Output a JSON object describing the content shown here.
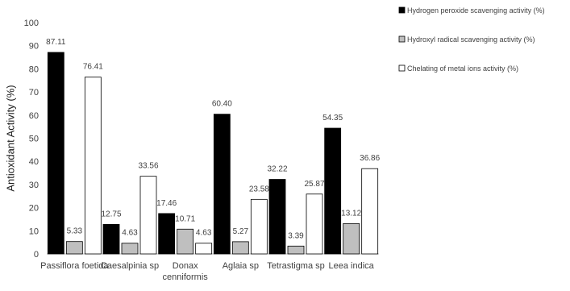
{
  "chart_data": {
    "type": "bar",
    "title": "",
    "xlabel": "",
    "ylabel": "Antioxidant Activity (%)",
    "ylim": [
      0,
      100
    ],
    "yticks": [
      0,
      10,
      20,
      30,
      40,
      50,
      60,
      70,
      80,
      90,
      100
    ],
    "grid": false,
    "legend_position": "top-right",
    "categories": [
      [
        "Passiflora foetida"
      ],
      [
        "Caesalpinia sp"
      ],
      [
        "Donax",
        "cenniformis"
      ],
      [
        "Aglaia sp"
      ],
      [
        "Tetrastigma sp"
      ],
      [
        "Leea indica"
      ]
    ],
    "series": [
      {
        "name": "Hydrogen peroxide scavenging activity (%)",
        "color": "#000000",
        "values": [
          87.11,
          12.75,
          17.46,
          60.4,
          32.22,
          54.35
        ]
      },
      {
        "name": "Hydroxyl radical scavenging activity (%)",
        "color": "#bfbfbf",
        "values": [
          5.33,
          4.63,
          10.71,
          5.27,
          3.39,
          13.12
        ]
      },
      {
        "name": "Chelating of metal ions activity (%)",
        "color": "#ffffff",
        "values": [
          76.41,
          33.56,
          4.63,
          23.58,
          25.87,
          36.86
        ]
      }
    ],
    "value_labels": [
      [
        "87.11",
        "12.75",
        "17.46",
        "60.40",
        "32.22",
        "54.35"
      ],
      [
        "5.33",
        "4.63",
        "10.71",
        "5.27",
        "3.39",
        "13.12"
      ],
      [
        "76.41",
        "33.56",
        "4.63",
        "23.58",
        "25.87",
        "36.86"
      ]
    ]
  }
}
